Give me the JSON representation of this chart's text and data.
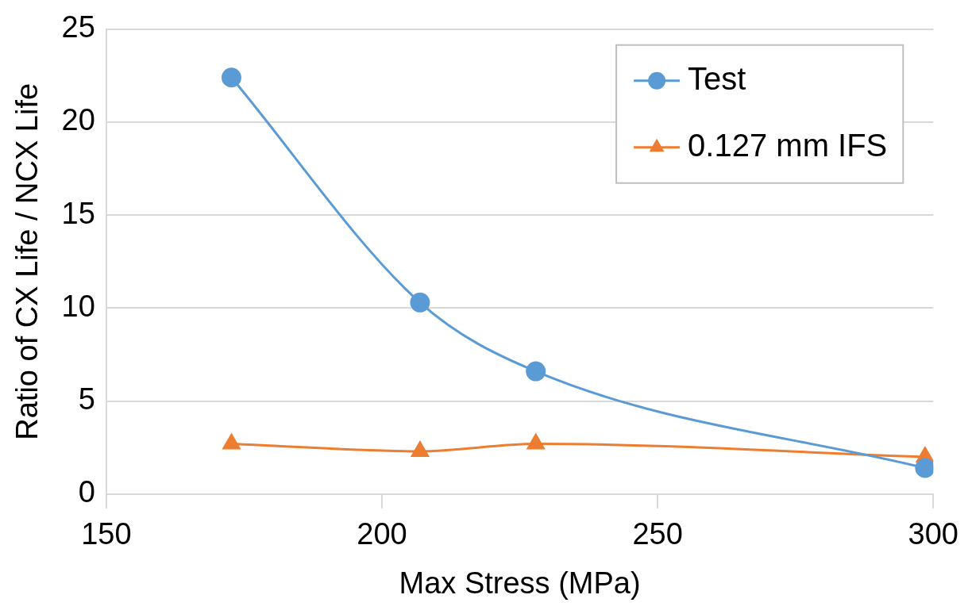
{
  "chart_data": {
    "type": "line",
    "xlabel": "Max Stress (MPa)",
    "ylabel": "Ratio of CX Life / NCX Life",
    "xlim": [
      150,
      300
    ],
    "xticks": [
      150,
      200,
      250,
      300
    ],
    "ylim": [
      0,
      25
    ],
    "yticks": [
      0,
      5,
      10,
      15,
      20,
      25
    ],
    "grid": "y",
    "legend": "top right",
    "series": [
      {
        "name": "Test",
        "color": "#5b9bd5",
        "marker": "circle",
        "x": [
          172.7,
          206.9,
          227.9,
          298.5
        ],
        "values": [
          22.4,
          10.3,
          6.6,
          1.4
        ]
      },
      {
        "name": "0.127 mm IFS",
        "color": "#ed7d31",
        "marker": "triangle",
        "x": [
          172.7,
          206.9,
          227.9,
          298.5
        ],
        "values": [
          2.7,
          2.3,
          2.7,
          2.0
        ]
      }
    ]
  }
}
